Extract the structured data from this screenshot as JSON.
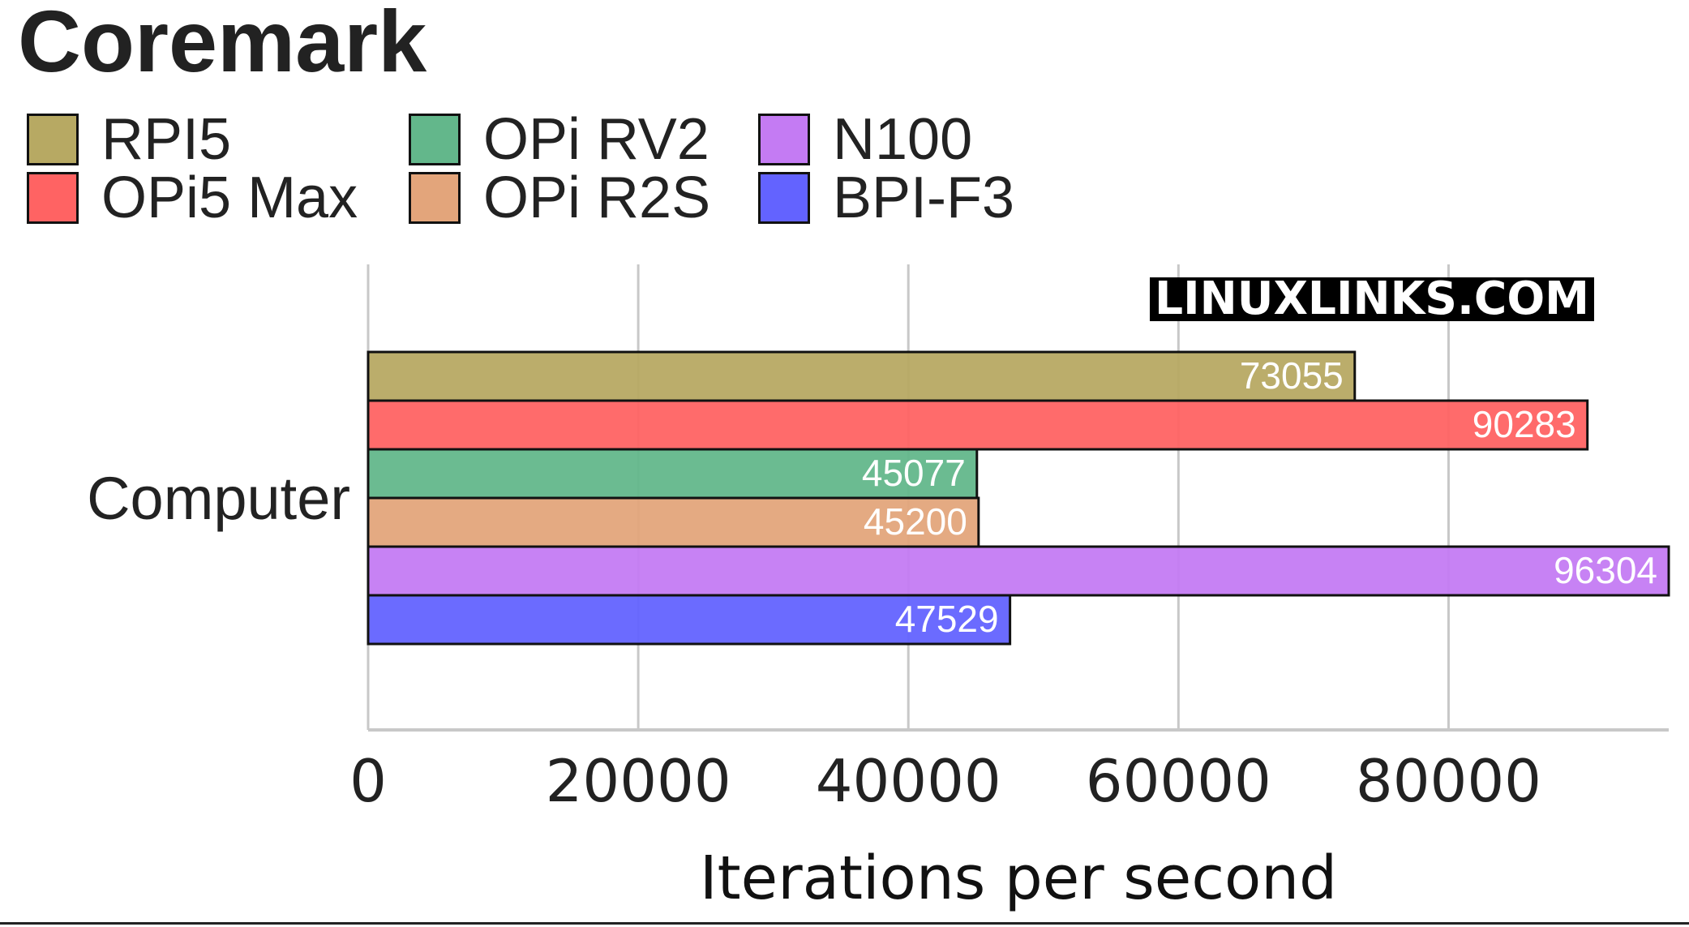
{
  "chart_data": {
    "type": "bar",
    "orientation": "horizontal",
    "title": "Coremark",
    "categories": [
      "Computer"
    ],
    "series": [
      {
        "name": "RPI5",
        "values": [
          73055
        ],
        "color": "#b7a963"
      },
      {
        "name": "OPi5 Max",
        "values": [
          90283
        ],
        "color": "#ff6363"
      },
      {
        "name": "OPi RV2",
        "values": [
          45077
        ],
        "color": "#63b78b"
      },
      {
        "name": "OPi R2S",
        "values": [
          45200
        ],
        "color": "#e3a57b"
      },
      {
        "name": "N100",
        "values": [
          96304
        ],
        "color": "#c47bf3"
      },
      {
        "name": "BPI-F3",
        "values": [
          47529
        ],
        "color": "#6363ff"
      }
    ],
    "xlabel": "Iterations per second",
    "ylabel": "",
    "xlim": [
      0,
      96304
    ],
    "xticks": [
      "0",
      "20000",
      "40000",
      "60000",
      "80000"
    ],
    "grid": true,
    "legend_position": "top-left",
    "watermark": "LINUXLINKS.COM"
  }
}
